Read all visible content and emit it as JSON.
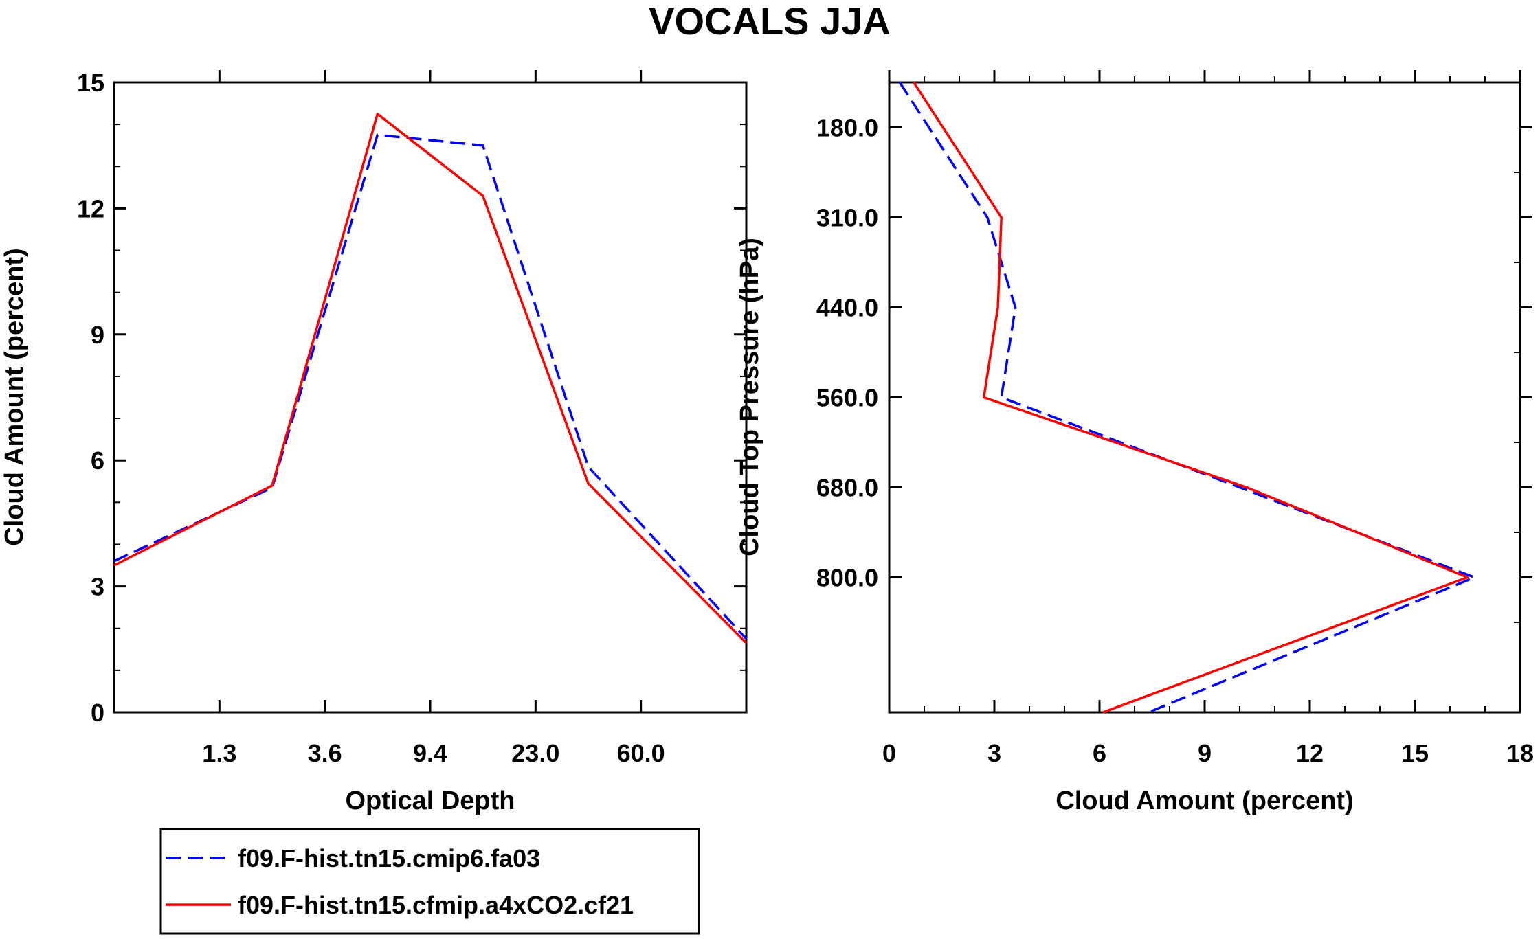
{
  "title": "VOCALS JJA",
  "colors": {
    "series_a": "#0000ff",
    "series_b": "#ff0000",
    "axes": "#000000",
    "background": "#ffffff"
  },
  "chart_data": [
    {
      "type": "line",
      "xlabel": "Optical Depth",
      "ylabel": "Cloud Amount (percent)",
      "x_tick_labels": [
        "1.3",
        "3.6",
        "9.4",
        "23.0",
        "60.0"
      ],
      "y_ticks": [
        0,
        3,
        6,
        9,
        12,
        15
      ],
      "ylim": [
        0,
        15
      ],
      "bin_index": [
        0,
        1,
        2,
        3,
        4,
        5,
        6
      ],
      "series": [
        {
          "name": "f09.F-hist.tn15.cmip6.fa03",
          "style": "dashed",
          "values": [
            3.6,
            5.35,
            13.75,
            13.5,
            5.85,
            1.75
          ]
        },
        {
          "name": "f09.F-hist.tn15.cfmip.a4xCO2.cf21",
          "style": "solid",
          "values": [
            3.5,
            5.4,
            14.25,
            12.3,
            5.45,
            1.65
          ]
        }
      ]
    },
    {
      "type": "line",
      "orientation": "vertical-profile",
      "xlabel": "Cloud Amount (percent)",
      "ylabel": "Cloud Top Pressure (hPa)",
      "x_ticks": [
        0,
        3,
        6,
        9,
        12,
        15,
        18
      ],
      "xlim": [
        0,
        18
      ],
      "y_tick_labels": [
        "180.0",
        "310.0",
        "440.0",
        "560.0",
        "680.0",
        "800.0"
      ],
      "level_index": [
        0,
        1,
        2,
        3,
        4,
        5,
        6,
        7
      ],
      "series": [
        {
          "name": "f09.F-hist.tn15.cmip6.fa03",
          "style": "dashed",
          "values": [
            0.3,
            2.8,
            3.6,
            3.2,
            10.0,
            16.7,
            7.4
          ]
        },
        {
          "name": "f09.F-hist.tn15.cfmip.a4xCO2.cf21",
          "style": "solid",
          "values": [
            0.7,
            3.2,
            3.1,
            2.7,
            10.2,
            16.5,
            6.1
          ]
        }
      ]
    }
  ],
  "legend": {
    "items": [
      {
        "label": "f09.F-hist.tn15.cmip6.fa03",
        "style": "dashed"
      },
      {
        "label": "f09.F-hist.tn15.cfmip.a4xCO2.cf21",
        "style": "solid"
      }
    ]
  }
}
